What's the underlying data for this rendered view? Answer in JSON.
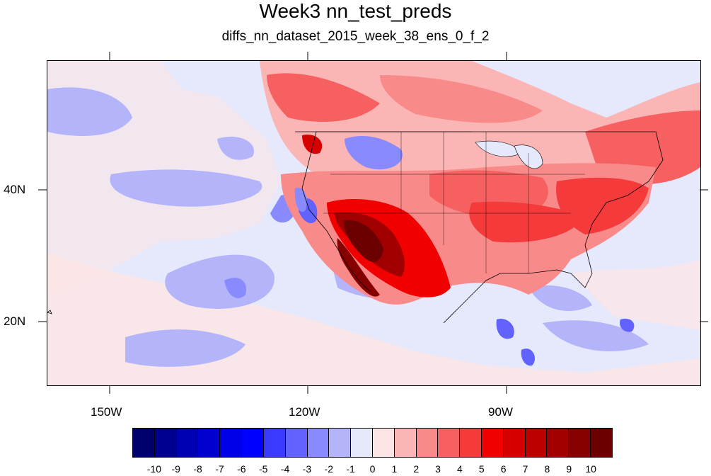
{
  "title": "Week3 nn_test_preds",
  "subtitle": "diffs_nn_dataset_2015_week_38_ens_0_f_2",
  "lon_labels": [
    "150W",
    "120W",
    "90W"
  ],
  "lat_labels": [
    "40N",
    "20N"
  ],
  "colorbar": {
    "labels": [
      "-10",
      "-9",
      "-8",
      "-7",
      "-6",
      "-5",
      "-4",
      "-3",
      "-2",
      "-1",
      "0",
      "1",
      "2",
      "3",
      "4",
      "5",
      "6",
      "7",
      "8",
      "9",
      "10"
    ],
    "colors": [
      "#00006b",
      "#00008f",
      "#0000b3",
      "#0000cf",
      "#0000e8",
      "#0000ff",
      "#3a3aff",
      "#6262ff",
      "#8a8aff",
      "#b4b4fb",
      "#e6e8fb",
      "#fde5e5",
      "#fbb5b5",
      "#f98a8a",
      "#f66060",
      "#f43a3a",
      "#f10000",
      "#d60000",
      "#bc0000",
      "#a20000",
      "#860000",
      "#6b0000"
    ]
  },
  "map": {
    "region": "Eastern Pacific and North America",
    "lon_range": [
      -160,
      -61
    ],
    "lat_range": [
      11,
      60
    ]
  }
}
